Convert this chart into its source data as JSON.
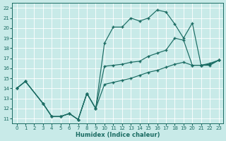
{
  "xlabel": "Humidex (Indice chaleur)",
  "bg_color": "#c8eae8",
  "grid_color": "#b0d4d2",
  "line_color": "#1a6b62",
  "xlim": [
    -0.5,
    23.5
  ],
  "ylim": [
    10.5,
    22.5
  ],
  "xticks": [
    0,
    1,
    2,
    3,
    4,
    5,
    6,
    7,
    8,
    9,
    10,
    11,
    12,
    13,
    14,
    15,
    16,
    17,
    18,
    19,
    20,
    21,
    22,
    23
  ],
  "yticks": [
    11,
    12,
    13,
    14,
    15,
    16,
    17,
    18,
    19,
    20,
    21,
    22
  ],
  "s1_x": [
    0,
    1,
    3,
    4,
    5,
    6,
    7,
    8,
    9,
    10,
    11,
    12,
    13,
    14,
    15,
    16,
    17,
    18,
    19,
    20,
    21,
    22,
    23
  ],
  "s1_y": [
    14,
    14.7,
    12.5,
    11.2,
    11.2,
    11.5,
    10.9,
    13.5,
    12.0,
    18.5,
    20.1,
    20.1,
    21.0,
    20.7,
    21.0,
    21.8,
    21.6,
    20.4,
    19.0,
    20.5,
    16.3,
    16.3,
    16.8
  ],
  "s2_x": [
    0,
    1,
    3,
    4,
    5,
    6,
    7,
    8,
    9,
    10,
    11,
    12,
    13,
    14,
    15,
    16,
    17,
    18,
    19,
    20,
    21,
    22,
    23
  ],
  "s2_y": [
    14,
    14.7,
    12.5,
    11.2,
    11.2,
    11.5,
    10.9,
    13.5,
    12.0,
    16.2,
    16.3,
    16.4,
    16.6,
    16.7,
    17.2,
    17.5,
    17.8,
    19.0,
    18.8,
    16.3,
    16.3,
    16.4,
    16.8
  ],
  "s3_x": [
    0,
    1,
    3,
    4,
    5,
    6,
    7,
    8,
    9,
    10,
    11,
    12,
    13,
    14,
    15,
    16,
    17,
    18,
    19,
    20,
    21,
    22,
    23
  ],
  "s3_y": [
    14,
    14.7,
    12.5,
    11.2,
    11.2,
    11.5,
    10.9,
    13.5,
    12.0,
    14.4,
    14.6,
    14.8,
    15.0,
    15.3,
    15.6,
    15.8,
    16.1,
    16.4,
    16.6,
    16.3,
    16.3,
    16.5,
    16.8
  ]
}
